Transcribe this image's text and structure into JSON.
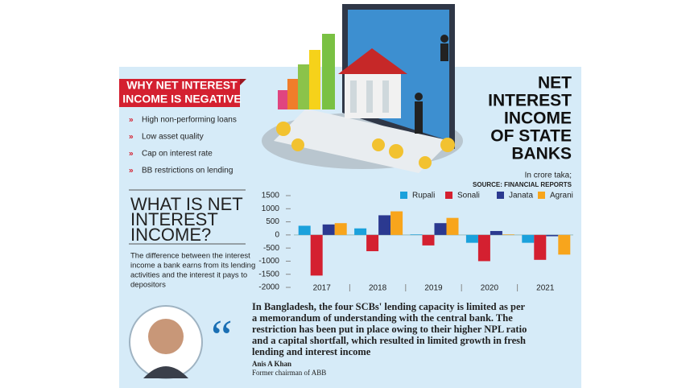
{
  "sidebar": {
    "heading": [
      "WHY NET INTEREST",
      "INCOME IS NEGATIVE"
    ],
    "bullets": [
      "High non-performing loans",
      "Low asset quality",
      "Cap on interest rate",
      "BB restrictions on lending"
    ],
    "definition_title": [
      "WHAT IS NET",
      "INTEREST",
      "INCOME?"
    ],
    "definition": [
      "The difference between the interest",
      "income a bank earns from its lending",
      "activities and the interest it pays to",
      "depositors"
    ]
  },
  "chart_data": {
    "type": "bar",
    "title": [
      "NET",
      "INTEREST",
      "INCOME",
      "OF STATE",
      "BANKS"
    ],
    "subtitle": "In crore taka;",
    "source": "SOURCE: FINANCIAL REPORTS",
    "categories": [
      "2017",
      "2018",
      "2019",
      "2020",
      "2021"
    ],
    "series": [
      {
        "name": "Rupali",
        "color": "#1ba1dc",
        "values": [
          350,
          250,
          20,
          -300,
          -300
        ]
      },
      {
        "name": "Sonali",
        "color": "#d42030",
        "values": [
          -1550,
          -620,
          -400,
          -1000,
          -950
        ]
      },
      {
        "name": "Janata",
        "color": "#2b3990",
        "values": [
          400,
          750,
          450,
          150,
          -50
        ]
      },
      {
        "name": "Agrani",
        "color": "#f8a51c",
        "values": [
          450,
          900,
          650,
          20,
          -750
        ]
      }
    ],
    "ylim": [
      -2000,
      1500
    ],
    "yticks": [
      -2000,
      -1500,
      -1000,
      -500,
      0,
      500,
      1000,
      1500
    ]
  },
  "quote": {
    "text": [
      "In Bangladesh, the four SCBs' lending capacity is limited as per",
      "a memorandum of understanding with the central bank. The",
      "restriction has been put in place owing to their higher NPL ratio",
      "and a capital shortfall, which resulted in limited growth in fresh",
      "lending and interest income"
    ],
    "author": "Anis A Khan",
    "role": "Former chairman of ABB"
  }
}
